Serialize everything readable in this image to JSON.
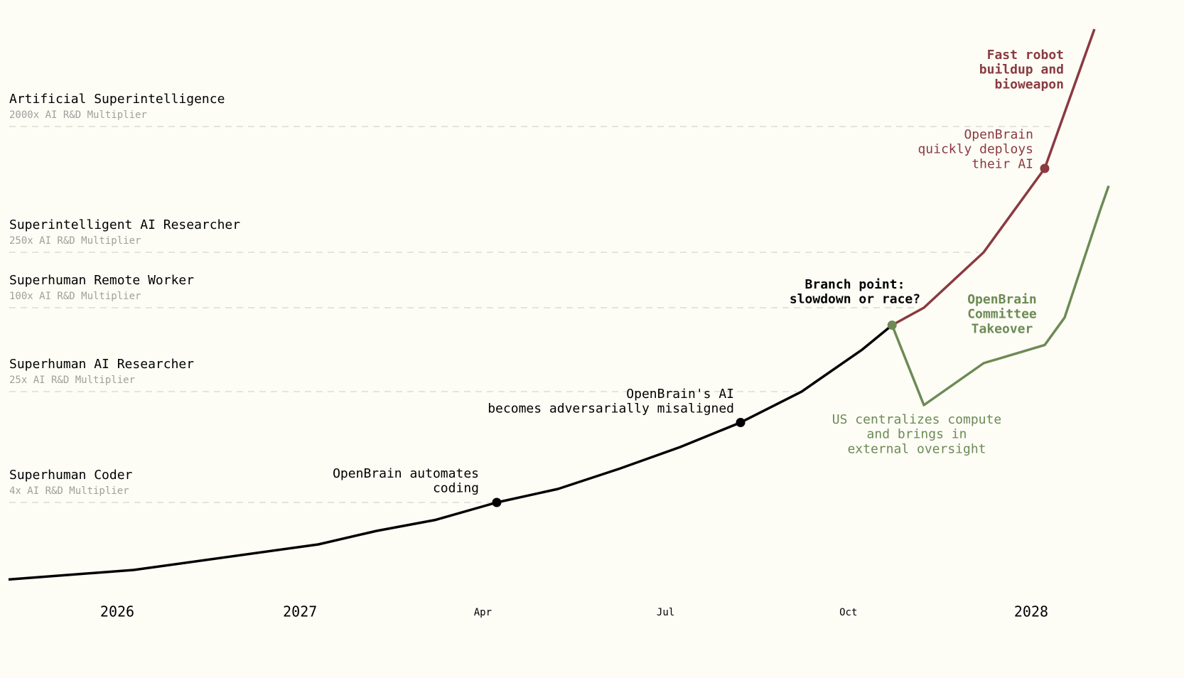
{
  "chart_data": {
    "type": "line",
    "log_y": true,
    "xlim": [
      -0.6,
      5.45
    ],
    "ylim": [
      1,
      10000
    ],
    "xticks": [
      {
        "value": 0,
        "label": "2026"
      },
      {
        "value": 1,
        "label": "2027"
      },
      {
        "value": 2,
        "label": "Apr"
      },
      {
        "value": 3,
        "label": "Jul"
      },
      {
        "value": 4,
        "label": "Oct"
      },
      {
        "value": 5,
        "label": "2028"
      }
    ],
    "milestones": [
      {
        "name": "Superhuman Coder",
        "sublabel": "4x AI R&D Multiplier",
        "value": 4
      },
      {
        "name": "Superhuman AI Researcher",
        "sublabel": "25x AI R&D Multiplier",
        "value": 25
      },
      {
        "name": "Superhuman Remote Worker",
        "sublabel": "100x AI R&D Multiplier",
        "value": 100
      },
      {
        "name": "Superintelligent AI Researcher",
        "sublabel": "250x AI R&D Multiplier",
        "value": 250
      },
      {
        "name": "Artificial Superintelligence",
        "sublabel": "2000x AI R&D Multiplier",
        "value": 2000
      }
    ],
    "series": [
      {
        "color": "#000000",
        "x": [
          -0.595,
          0.089,
          1.1,
          1.419,
          1.742,
          2.076,
          2.411,
          2.749,
          3.08,
          3.41,
          3.744,
          4.075,
          4.239
        ],
        "values": [
          1.12,
          1.31,
          2,
          2.5,
          3,
          4,
          5,
          7,
          10,
          15,
          25,
          50,
          75
        ],
        "highlight": [
          5,
          9
        ]
      },
      {
        "color": "#8a3a40",
        "x": [
          4.239,
          4.413,
          4.74,
          5.074,
          5.346
        ],
        "values": [
          75,
          100,
          250,
          1000,
          10000
        ],
        "highlight": [
          3
        ]
      },
      {
        "color": "#6d8a55",
        "x": [
          4.239,
          4.413,
          4.74,
          5.074,
          5.183,
          5.377,
          5.424
        ],
        "values": [
          75,
          20,
          40,
          54,
          85,
          500,
          750
        ],
        "highlight": [
          0
        ]
      }
    ],
    "annotations": [
      {
        "lines": [
          "OpenBrain automates",
          "coding"
        ],
        "color": "#000000",
        "bold": false
      },
      {
        "lines": [
          "OpenBrain's AI",
          "becomes adversarially misaligned"
        ],
        "color": "#000000",
        "bold": false
      },
      {
        "lines": [
          "Branch point:",
          "slowdown or race?"
        ],
        "color": "#000000",
        "bold": true
      },
      {
        "lines": [
          "US centralizes compute",
          "and brings in",
          "external oversight"
        ],
        "color": "#6d8a55",
        "bold": false
      },
      {
        "lines": [
          "OpenBrain",
          "Committee",
          "Takeover"
        ],
        "color": "#6d8a55",
        "bold": true
      },
      {
        "lines": [
          "OpenBrain",
          "quickly deploys",
          "their AI"
        ],
        "color": "#8a3a40",
        "bold": false
      },
      {
        "lines": [
          "Fast robot",
          "buildup and",
          "bioweapon"
        ],
        "color": "#8a3a40",
        "bold": true
      }
    ]
  }
}
